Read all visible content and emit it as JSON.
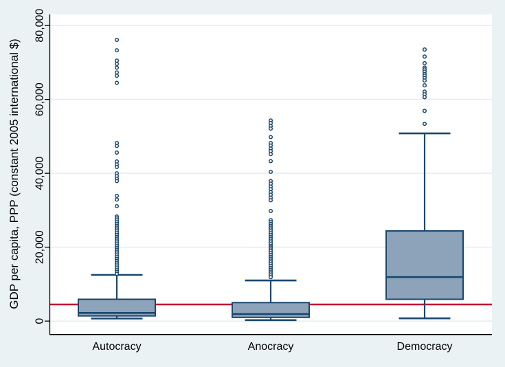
{
  "window": {
    "background": "#eaf2f3"
  },
  "chart_data": {
    "type": "boxplot",
    "title": "",
    "xlabel": "",
    "ylabel": "GDP per capita, PPP (constant 2005 international $)",
    "ylim": [
      -3500,
      83000
    ],
    "grid": true,
    "legend": "none",
    "ytick_values": [
      0,
      20000,
      40000,
      60000,
      80000
    ],
    "ytick_labels": [
      "0",
      "20,000",
      "40,000",
      "60,000",
      "80,000"
    ],
    "categories": [
      "Autocracy",
      "Anocracy",
      "Democracy"
    ],
    "reference_line": {
      "value": 4500,
      "color": "#c10534"
    },
    "colors": {
      "figure_bg": "#eaf2f3",
      "plot_bg": "#ffffff",
      "grid": "#e6eef0",
      "axis": "#000000",
      "box_fill": "#8da3ba",
      "box_stroke": "#1a476f",
      "outlier": "#1a476f",
      "refline": "#c10534"
    },
    "series": [
      {
        "name": "Autocracy",
        "whisker_low": 700,
        "q1": 1400,
        "median": 2200,
        "q3": 5900,
        "whisker_high": 12500,
        "outliers": [
          76100,
          73300,
          70500,
          69600,
          68600,
          67300,
          66400,
          64500,
          48200,
          47400,
          45600,
          43200,
          42400,
          41700,
          40000,
          39200,
          38500,
          37900,
          33900,
          32900,
          31100,
          28300,
          27800,
          27300,
          26800,
          26300,
          25800,
          25300,
          24800,
          24300,
          23800,
          23300,
          22800,
          22300,
          21800,
          21300,
          20800,
          20300,
          19800,
          19300,
          18800,
          18300,
          17800,
          17300,
          16800,
          16300,
          15800,
          15300,
          14800,
          14300,
          13800,
          13300,
          12800
        ]
      },
      {
        "name": "Anocracy",
        "whisker_low": 250,
        "q1": 1000,
        "median": 1900,
        "q3": 5000,
        "whisker_high": 11000,
        "outliers": [
          54300,
          53600,
          52800,
          52100,
          49800,
          48200,
          47500,
          46700,
          46000,
          45200,
          43300,
          40400,
          37900,
          37200,
          36400,
          35700,
          34900,
          34200,
          33400,
          32700,
          29800,
          27300,
          26800,
          26300,
          25800,
          25300,
          24800,
          24300,
          23800,
          23300,
          22800,
          22300,
          21800,
          21300,
          20800,
          20300,
          19900,
          19400,
          18900,
          18400,
          17900,
          17400,
          16900,
          16400,
          15900,
          15400,
          14900,
          14400,
          13900,
          13400,
          12900,
          12400,
          11900
        ]
      },
      {
        "name": "Democracy",
        "whisker_low": 750,
        "q1": 5900,
        "median": 11900,
        "q3": 24400,
        "whisker_high": 50800,
        "outliers": [
          73500,
          71600,
          69800,
          68600,
          68100,
          67500,
          66900,
          66400,
          65800,
          65100,
          63800,
          62100,
          61400,
          60600,
          56900,
          53400
        ]
      }
    ]
  }
}
